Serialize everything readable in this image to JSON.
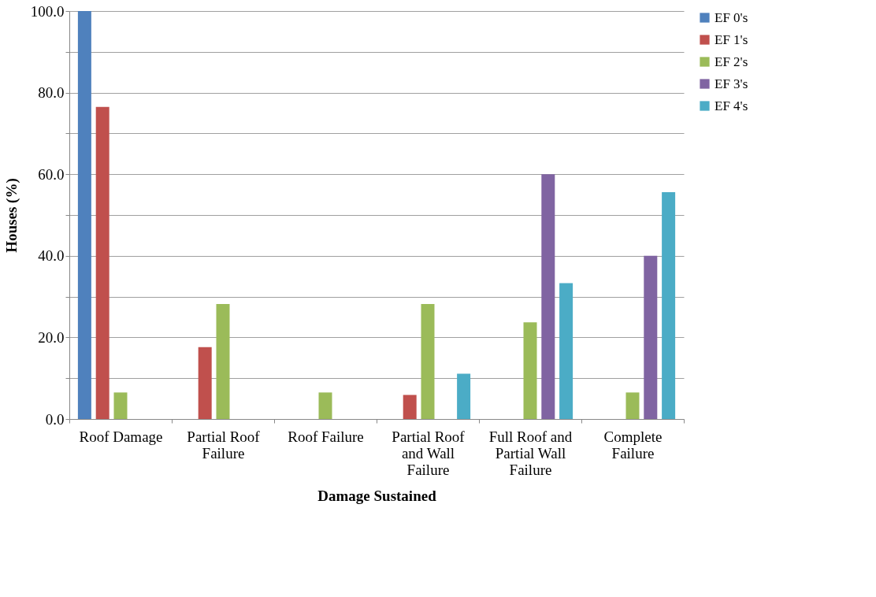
{
  "chart_data": {
    "type": "bar",
    "xlabel": "Damage Sustained",
    "ylabel": "Houses (%)",
    "categories": [
      "Roof Damage",
      "Partial Roof Failure",
      "Roof Failure",
      "Partial Roof and Wall Failure",
      "Full Roof and Partial Wall Failure",
      "Complete Failure"
    ],
    "series": [
      {
        "name": "EF 0's",
        "color": "#4f81bd",
        "values": [
          100.0,
          null,
          null,
          null,
          null,
          null
        ]
      },
      {
        "name": "EF 1's",
        "color": "#c0504d",
        "values": [
          76.5,
          17.6,
          null,
          5.9,
          null,
          null
        ]
      },
      {
        "name": "EF 2's",
        "color": "#9bbb59",
        "values": [
          6.5,
          28.2,
          6.5,
          28.2,
          23.7,
          6.5
        ]
      },
      {
        "name": "EF 3's",
        "color": "#8064a2",
        "values": [
          null,
          null,
          null,
          null,
          60.0,
          40.0
        ]
      },
      {
        "name": "EF 4's",
        "color": "#4bacc6",
        "values": [
          null,
          null,
          null,
          11.1,
          33.3,
          55.6
        ]
      }
    ],
    "ylim": [
      0,
      100
    ],
    "yticks": [
      {
        "value": 0,
        "label": "0.0"
      },
      {
        "value": 10,
        "label": null
      },
      {
        "value": 20,
        "label": "20.0"
      },
      {
        "value": 30,
        "label": null
      },
      {
        "value": 40,
        "label": "40.0"
      },
      {
        "value": 50,
        "label": null
      },
      {
        "value": 60,
        "label": "60.0"
      },
      {
        "value": 70,
        "label": null
      },
      {
        "value": 80,
        "label": "80.0"
      },
      {
        "value": 90,
        "label": null
      },
      {
        "value": 100,
        "label": "100.0"
      }
    ],
    "grid": "y",
    "legend": "right"
  }
}
